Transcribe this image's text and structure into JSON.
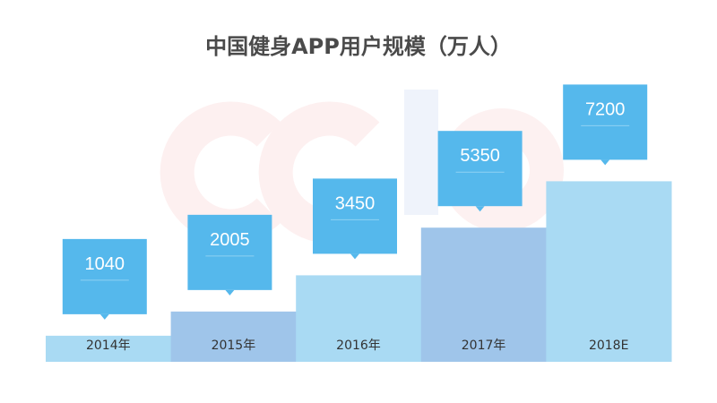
{
  "chart_data": {
    "type": "bar",
    "title": "中国健身APP用户规模（万人）",
    "categories": [
      "2014年",
      "2015年",
      "2016年",
      "2017年",
      "2018E"
    ],
    "values": [
      1040,
      2005,
      3450,
      5350,
      7200
    ],
    "ylim": [
      0,
      10000
    ],
    "grid": false,
    "legend": "none",
    "colors": {
      "bar_light": "#a9daf3",
      "bar_dark": "#9fc5ea",
      "callout": "#55b8ec",
      "callout_rule": "#8fd1f3",
      "title": "#4a4a4a",
      "label": "#333333"
    }
  }
}
